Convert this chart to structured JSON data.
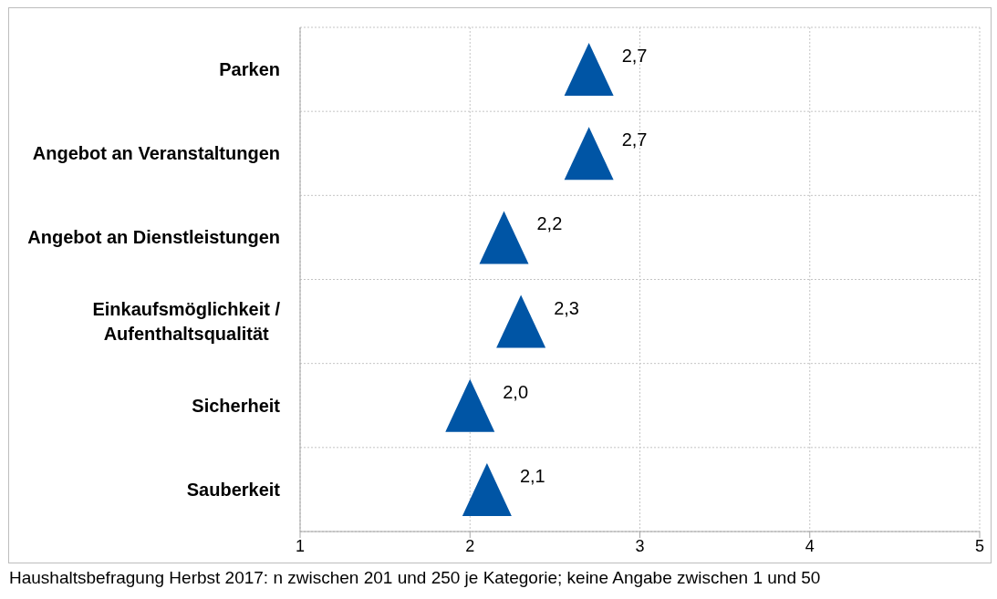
{
  "chart_data": {
    "type": "scatter",
    "orientation": "horizontal",
    "categories": [
      "Parken",
      "Angebot an Veranstaltungen",
      "Angebot an Dienstleistungen",
      "Einkaufsmöglichkeit / Aufenthaltsqualität",
      "Sicherheit",
      "Sauberkeit"
    ],
    "values": [
      2.7,
      2.7,
      2.2,
      2.3,
      2.0,
      2.1
    ],
    "value_labels": [
      "2,7",
      "2,7",
      "2,2",
      "2,3",
      "2,0",
      "2,1"
    ],
    "color": "#0055a5",
    "marker": "triangle",
    "xlim": [
      1,
      5
    ],
    "xticks": [
      1,
      2,
      3,
      4,
      5
    ],
    "grid": true,
    "annotations": [
      "Haushaltsbefragung Herbst 2017: n zwischen 201 und 250 je Kategorie; keine Angabe zwischen 1 und 50"
    ]
  }
}
